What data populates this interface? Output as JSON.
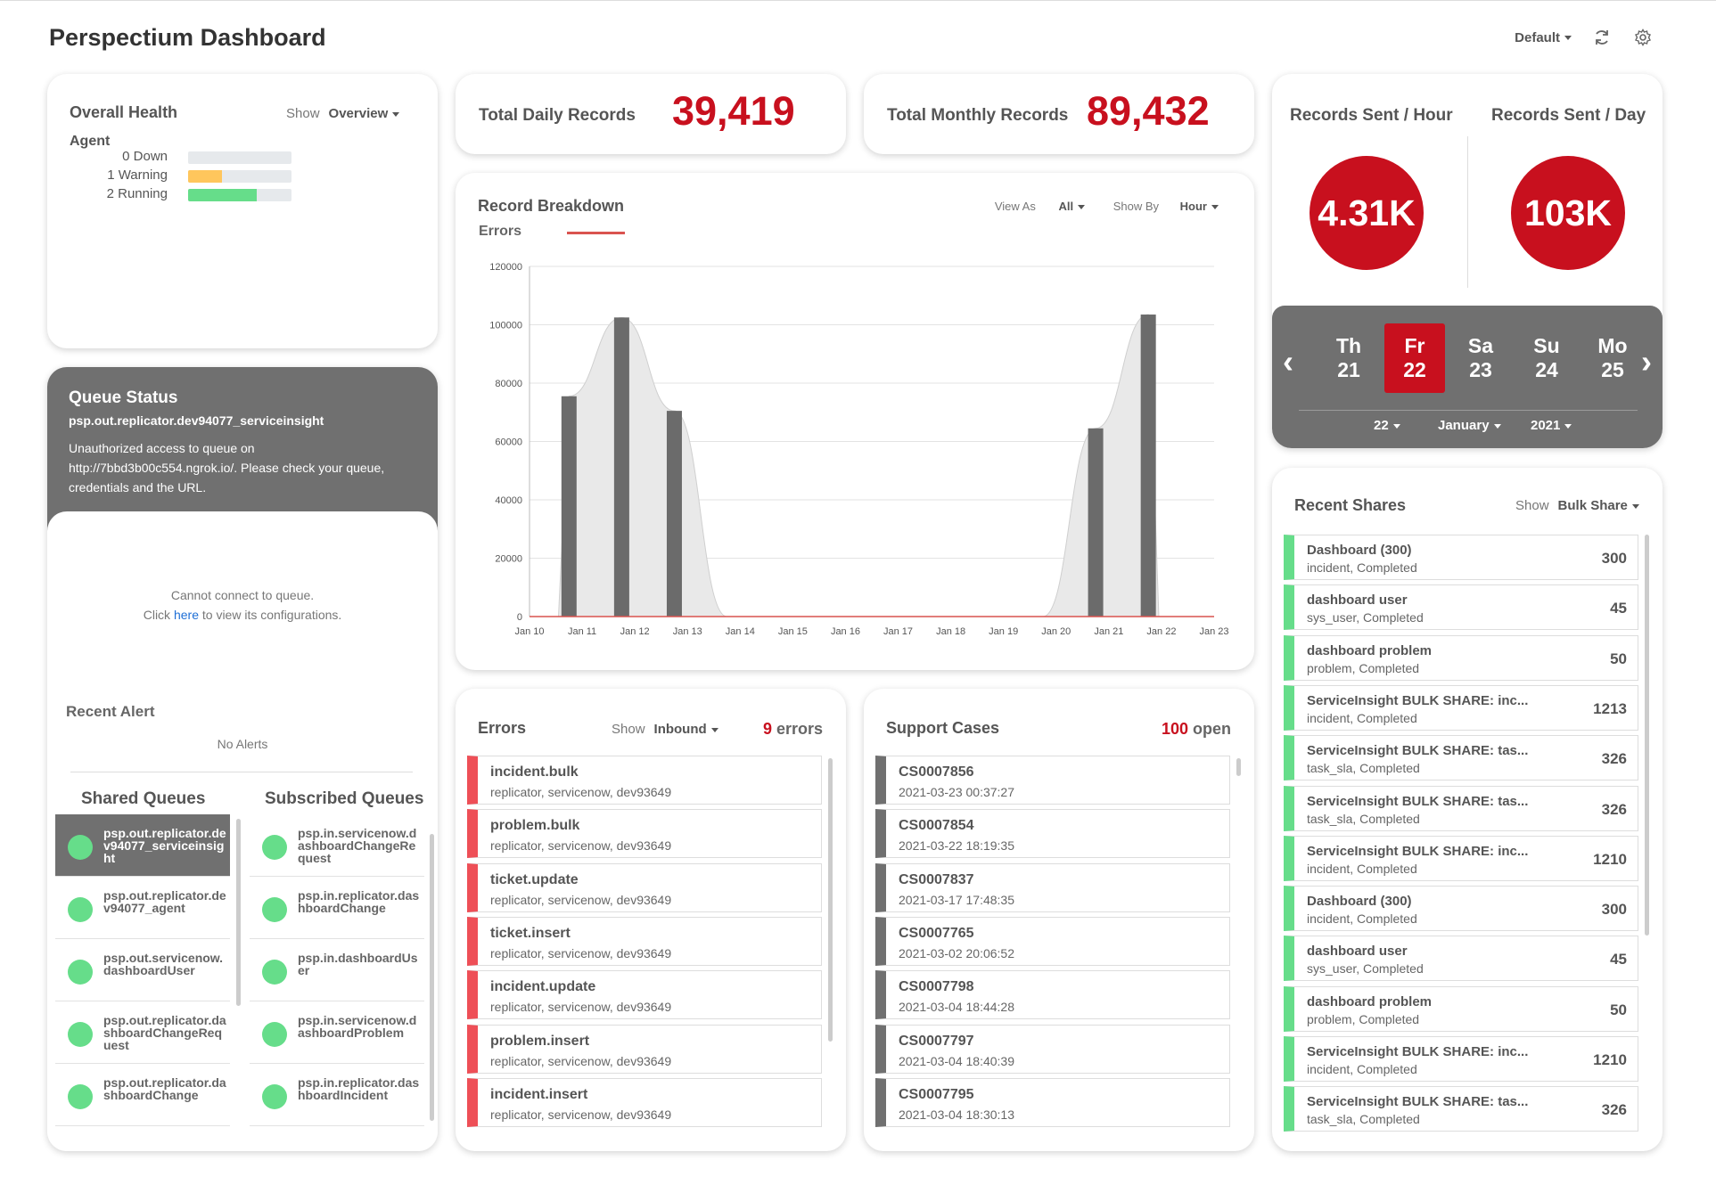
{
  "header": {
    "title": "Perspectium Dashboard",
    "profile_label": "Default",
    "refresh_icon": "refresh-icon",
    "settings_icon": "gear-icon"
  },
  "health": {
    "title": "Overall Health",
    "show_label": "Show",
    "show_value": "Overview",
    "agent_label": "Agent",
    "rows": [
      {
        "label": "0 Down",
        "fraction": 0,
        "color": "#e6e9ec"
      },
      {
        "label": "1 Warning",
        "fraction": 0.33,
        "color": "#ffc65c"
      },
      {
        "label": "2 Running",
        "fraction": 0.66,
        "color": "#66dd8a"
      }
    ]
  },
  "queue": {
    "title": "Queue Status",
    "queue_name": "psp.out.replicator.dev94077_serviceinsight",
    "message": "Unauthorized access to queue on http://7bbd3b00c554.ngrok.io/. Please check your queue, credentials and the URL.",
    "cannot_connect": "Cannot connect to queue.",
    "click_prefix": "Click",
    "click_link": "here",
    "click_suffix": "to view its configurations.",
    "recent_alert_title": "Recent Alert",
    "no_alerts": "No Alerts",
    "shared_title": "Shared Queues",
    "subscribed_title": "Subscribed Queues",
    "shared": [
      "psp.out.replicator.dev94077_serviceinsight",
      "psp.out.replicator.dev94077_agent",
      "psp.out.servicenow.dashboardUser",
      "psp.out.replicator.dashboardChangeRequest",
      "psp.out.replicator.dashboardChange"
    ],
    "subscribed": [
      "psp.in.servicenow.dashboardChangeRequest",
      "psp.in.replicator.dashboardChange",
      "psp.in.dashboardUser",
      "psp.in.servicenow.dashboardProblem",
      "psp.in.replicator.dashboardIncident"
    ]
  },
  "daily": {
    "label": "Total Daily Records",
    "value": "39,419"
  },
  "monthly": {
    "label": "Total Monthly Records",
    "value": "89,432"
  },
  "breakdown": {
    "title": "Record Breakdown",
    "view_as_label": "View As",
    "view_as_value": "All",
    "show_by_label": "Show By",
    "show_by_value": "Hour",
    "legend": "Errors"
  },
  "chart_data": {
    "type": "bar",
    "categories": [
      "Jan 10",
      "Jan 11",
      "Jan 12",
      "Jan 13",
      "Jan 14",
      "Jan 15",
      "Jan 16",
      "Jan 17",
      "Jan 18",
      "Jan 19",
      "Jan 20",
      "Jan 21",
      "Jan 22",
      "Jan 23"
    ],
    "bar_positions": [
      0.75,
      1.75,
      2.75,
      10.75,
      11.75
    ],
    "bar_values": [
      75500,
      102500,
      70500,
      64500,
      103500
    ],
    "area_points": [
      [
        0.75,
        75500
      ],
      [
        1.75,
        102500
      ],
      [
        2.75,
        70500
      ],
      [
        3.75,
        0
      ],
      [
        9.75,
        0
      ],
      [
        10.75,
        64500
      ],
      [
        11.75,
        103500
      ]
    ],
    "errors_series": {
      "name": "Errors",
      "values": [
        0,
        0,
        0,
        0,
        0,
        0,
        0,
        0,
        0,
        0,
        0,
        0,
        0,
        0
      ],
      "color": "#d9534f"
    },
    "yticks": [
      0,
      20000,
      40000,
      60000,
      80000,
      100000,
      120000
    ],
    "ylim": [
      0,
      120000
    ],
    "bar_color": "#6b6b6b",
    "area_color": "#e9e9e9",
    "grid": true
  },
  "sent": {
    "hour_label": "Records Sent / Hour",
    "hour_value": "4.31K",
    "day_label": "Records Sent / Day",
    "day_value": "103K"
  },
  "calendar": {
    "days": [
      {
        "dow": "Th",
        "num": "21"
      },
      {
        "dow": "Fr",
        "num": "22"
      },
      {
        "dow": "Sa",
        "num": "23"
      },
      {
        "dow": "Su",
        "num": "24"
      },
      {
        "dow": "Mo",
        "num": "25"
      }
    ],
    "day_select": "22",
    "month_select": "January",
    "year_select": "2021"
  },
  "shares": {
    "title": "Recent Shares",
    "show_label": "Show",
    "show_value": "Bulk Share",
    "items": [
      {
        "name": "Dashboard (300)",
        "sub": "incident, Completed",
        "count": "300"
      },
      {
        "name": "dashboard user",
        "sub": "sys_user, Completed",
        "count": "45"
      },
      {
        "name": "dashboard problem",
        "sub": "problem, Completed",
        "count": "50"
      },
      {
        "name": "ServiceInsight BULK SHARE: inc...",
        "sub": "incident, Completed",
        "count": "1213"
      },
      {
        "name": "ServiceInsight BULK SHARE: tas...",
        "sub": "task_sla, Completed",
        "count": "326"
      },
      {
        "name": "ServiceInsight BULK SHARE: tas...",
        "sub": "task_sla, Completed",
        "count": "326"
      },
      {
        "name": "ServiceInsight BULK SHARE: inc...",
        "sub": "incident, Completed",
        "count": "1210"
      },
      {
        "name": "Dashboard (300)",
        "sub": "incident, Completed",
        "count": "300"
      },
      {
        "name": "dashboard user",
        "sub": "sys_user, Completed",
        "count": "45"
      },
      {
        "name": "dashboard problem",
        "sub": "problem, Completed",
        "count": "50"
      },
      {
        "name": "ServiceInsight BULK SHARE: inc...",
        "sub": "incident, Completed",
        "count": "1210"
      },
      {
        "name": "ServiceInsight BULK SHARE: tas...",
        "sub": "task_sla, Completed",
        "count": "326"
      }
    ]
  },
  "errors": {
    "title": "Errors",
    "show_label": "Show",
    "show_value": "Inbound",
    "count": "9",
    "count_suffix": "errors",
    "items": [
      {
        "name": "incident.bulk",
        "sub": "replicator, servicenow, dev93649"
      },
      {
        "name": "problem.bulk",
        "sub": "replicator, servicenow, dev93649"
      },
      {
        "name": "ticket.update",
        "sub": "replicator, servicenow, dev93649"
      },
      {
        "name": "ticket.insert",
        "sub": "replicator, servicenow, dev93649"
      },
      {
        "name": "incident.update",
        "sub": "replicator, servicenow, dev93649"
      },
      {
        "name": "problem.insert",
        "sub": "replicator, servicenow, dev93649"
      },
      {
        "name": "incident.insert",
        "sub": "replicator, servicenow, dev93649"
      }
    ]
  },
  "support": {
    "title": "Support Cases",
    "count": "100",
    "count_suffix": "open",
    "items": [
      {
        "name": "CS0007856",
        "sub": "2021-03-23 00:37:27"
      },
      {
        "name": "CS0007854",
        "sub": "2021-03-22 18:19:35"
      },
      {
        "name": "CS0007837",
        "sub": "2021-03-17 17:48:35"
      },
      {
        "name": "CS0007765",
        "sub": "2021-03-02 20:06:52"
      },
      {
        "name": "CS0007798",
        "sub": "2021-03-04 18:44:28"
      },
      {
        "name": "CS0007797",
        "sub": "2021-03-04 18:40:39"
      },
      {
        "name": "CS0007795",
        "sub": "2021-03-04 18:30:13"
      }
    ]
  }
}
